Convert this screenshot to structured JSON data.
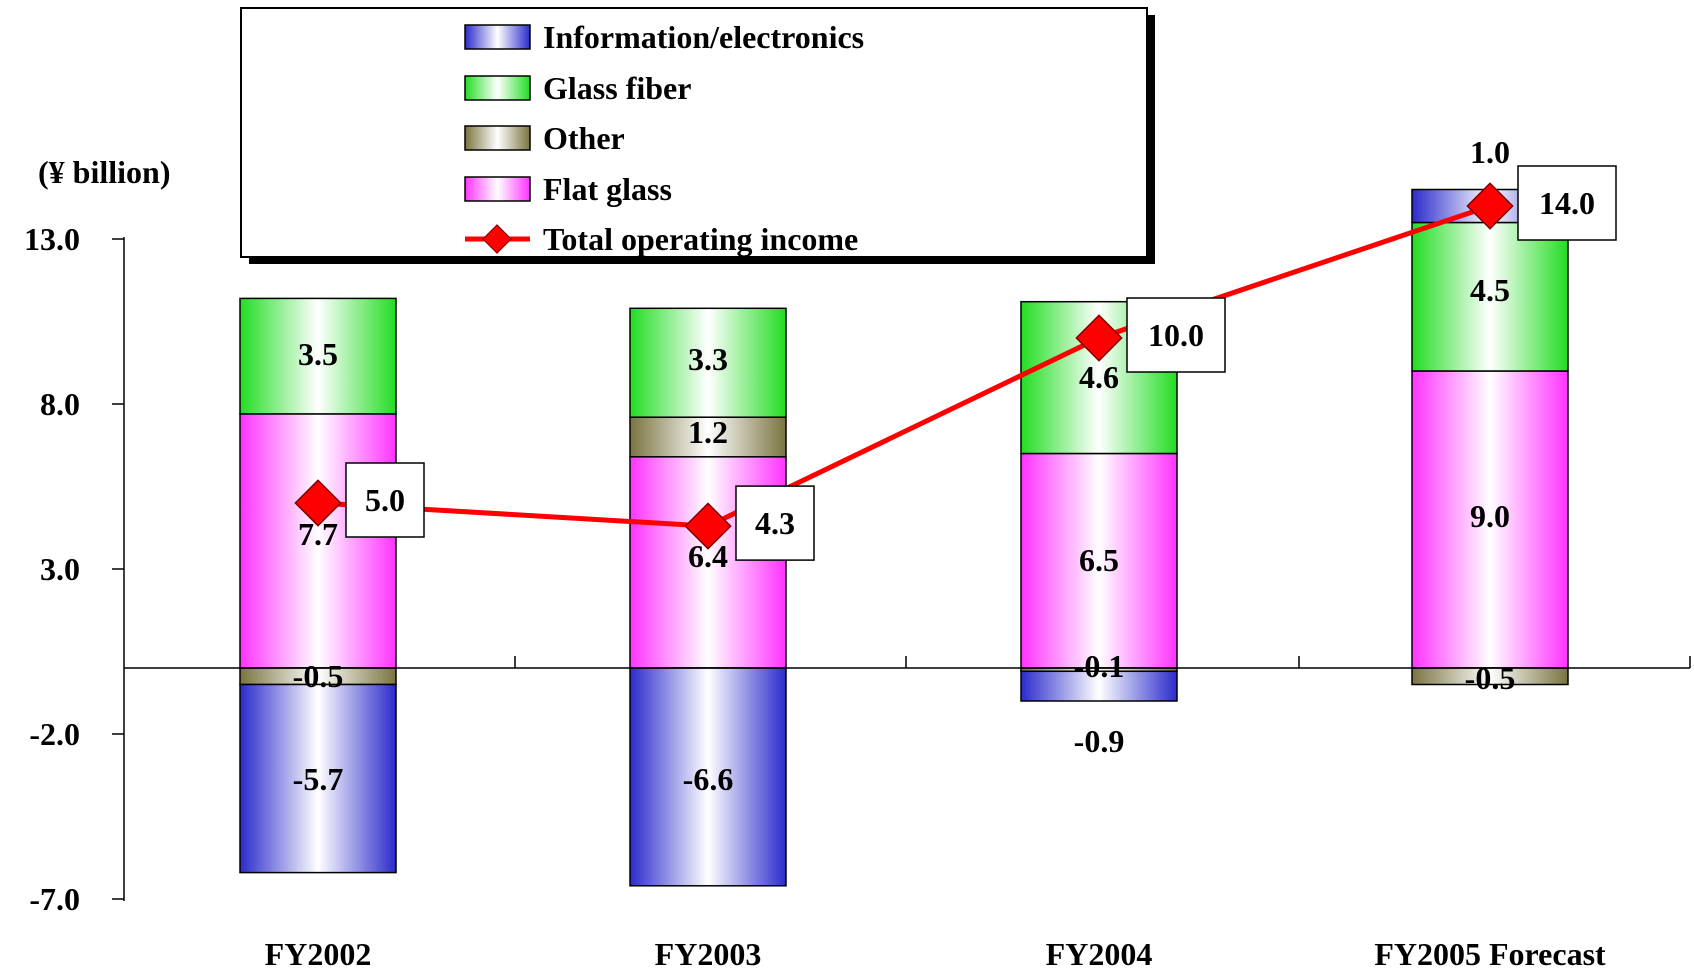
{
  "chart_data": {
    "type": "bar",
    "stacked": true,
    "unit_label": "(¥ billion)",
    "categories": [
      "FY2002",
      "FY2003",
      "FY2004",
      "FY2005 Forecast"
    ],
    "ylim": [
      -7.0,
      13.0
    ],
    "yticks": [
      13.0,
      8.0,
      3.0,
      -2.0,
      -7.0
    ],
    "ytick_labels": [
      "13.0",
      "8.0",
      "3.0",
      "-2.0",
      "-7.0"
    ],
    "series": [
      {
        "name": "Flat glass",
        "key": "flat",
        "values": [
          7.7,
          6.4,
          6.5,
          9.0
        ],
        "labels": [
          "7.7",
          "6.4",
          "6.5",
          "9.0"
        ],
        "color": "#ff33ff"
      },
      {
        "name": "Other",
        "key": "other",
        "values": [
          -0.5,
          1.2,
          -0.1,
          -0.5
        ],
        "labels": [
          "-0.5",
          "1.2",
          "-0.1",
          "-0.5"
        ],
        "color": "#7a7440"
      },
      {
        "name": "Glass fiber",
        "key": "glass",
        "values": [
          3.5,
          3.3,
          4.6,
          4.5
        ],
        "labels": [
          "3.5",
          "3.3",
          "4.6",
          "4.5"
        ],
        "color": "#22dd22"
      },
      {
        "name": "Information/electronics",
        "key": "info",
        "values": [
          -5.7,
          -6.6,
          -0.9,
          1.0
        ],
        "labels": [
          "-5.7",
          "-6.6",
          "-0.9",
          "1.0"
        ],
        "color": "#2b2bcc"
      }
    ],
    "line": {
      "name": "Total operating income",
      "values": [
        5.0,
        4.3,
        10.0,
        14.0
      ],
      "labels": [
        "5.0",
        "4.3",
        "10.0",
        "14.0"
      ],
      "color": "#ff0000"
    },
    "legend": {
      "placement": "top-center",
      "entries": [
        "Information/electronics",
        "Glass fiber",
        "Other",
        "Flat glass",
        "Total operating income"
      ]
    }
  }
}
